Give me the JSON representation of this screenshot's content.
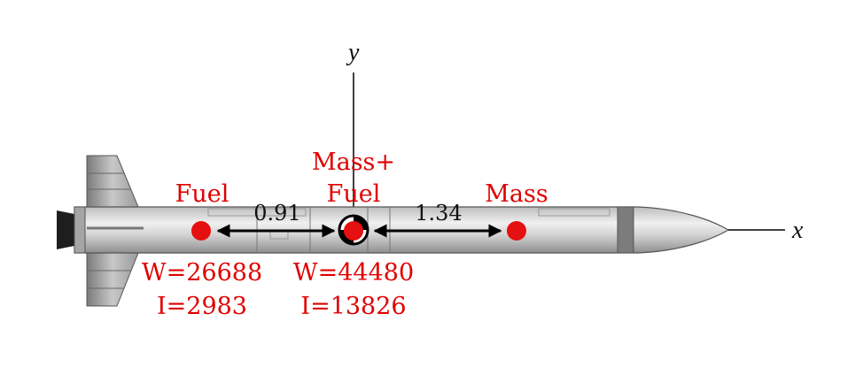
{
  "axes": {
    "y_label": "y",
    "x_label": "x"
  },
  "points": {
    "fuel": {
      "label": "Fuel",
      "weight": "W=26688",
      "inertia": "I=2983"
    },
    "combined": {
      "label_line1": "Mass+",
      "label_line2": "Fuel",
      "weight": "W=44480",
      "inertia": "I=13826"
    },
    "mass": {
      "label": "Mass"
    }
  },
  "distances": {
    "fuel_to_combined": "0.91",
    "combined_to_mass": "1.34"
  },
  "colors": {
    "label_red": "#e00000",
    "point_red": "#e51010",
    "rocket_body": "#c9c9c9",
    "rocket_dark": "#4a4a4a"
  }
}
